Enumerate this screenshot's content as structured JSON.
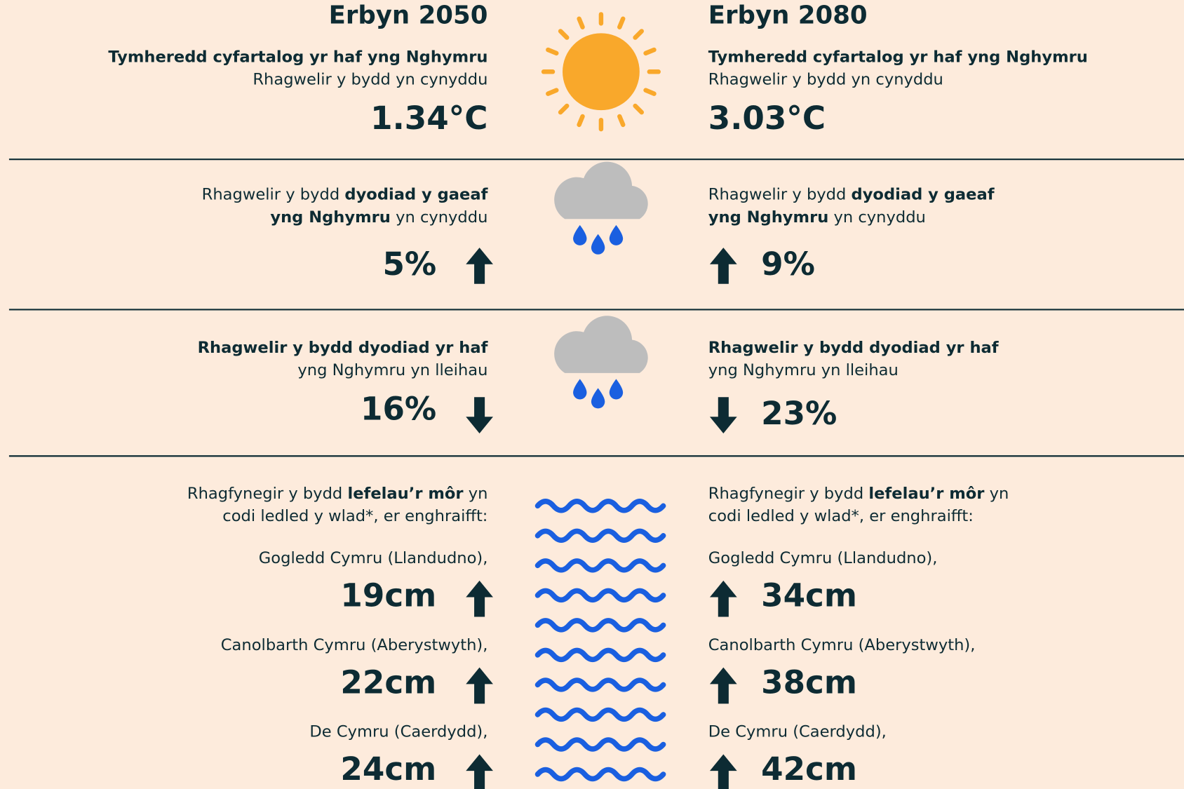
{
  "headers": [
    "Erbyn 2050",
    "Erbyn 2080"
  ],
  "temperature": {
    "title": "Tymheredd cyfartalog yr haf yng Nghymru",
    "subtitle": "Rhagwelir y bydd yn cynyddu",
    "values": [
      "1.34°C",
      "3.03°C"
    ]
  },
  "winter_rain": {
    "line1": [
      "Rhagwelir y bydd ",
      "dyodiad y gaeaf"
    ],
    "line2": [
      "yng Nghymru",
      " yn cynyddu"
    ],
    "values": [
      "5%",
      "9%"
    ]
  },
  "summer_rain": {
    "line1": "Rhagwelir y bydd dyodiad yr haf",
    "line2": "yng Nghymru yn lleihau",
    "values": [
      "16%",
      "23%"
    ]
  },
  "sea_level": {
    "line1": [
      "Rhagfynegir y bydd ",
      "lefelau’r môr",
      " yn"
    ],
    "line2": "codi ledled y wlad*, er enghraifft:",
    "places": [
      {
        "name": "Gogledd Cymru (Llandudno),",
        "values": [
          "19cm",
          "34cm"
        ]
      },
      {
        "name": "Canolbarth Cymru (Aberystwyth),",
        "values": [
          "22cm",
          "38cm"
        ]
      },
      {
        "name": "De Cymru (Caerdydd),",
        "values": [
          "24cm",
          "42cm"
        ]
      }
    ]
  }
}
